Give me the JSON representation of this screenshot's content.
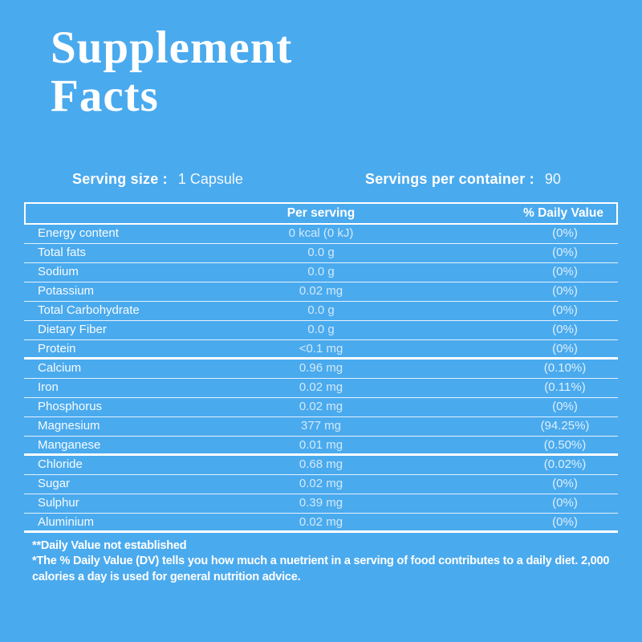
{
  "title": {
    "line1": "Supplement",
    "line2": "Facts"
  },
  "serving": {
    "size_label": "Serving size :",
    "size_value": "1 Capsule",
    "container_label": "Servings per container :",
    "container_value": "90"
  },
  "table": {
    "header_per_serving": "Per serving",
    "header_daily_value": "% Daily Value",
    "rows": [
      {
        "name": "Energy content",
        "amount": "0 kcal (0 kJ)",
        "dv": "(0%)",
        "thick_after": false
      },
      {
        "name": "Total fats",
        "amount": "0.0 g",
        "dv": "(0%)",
        "thick_after": false
      },
      {
        "name": "Sodium",
        "amount": "0.0 g",
        "dv": "(0%)",
        "thick_after": false
      },
      {
        "name": "Potassium",
        "amount": "0.02 mg",
        "dv": "(0%)",
        "thick_after": false
      },
      {
        "name": "Total Carbohydrate",
        "amount": "0.0 g",
        "dv": "(0%)",
        "thick_after": false
      },
      {
        "name": "Dietary Fiber",
        "amount": "0.0 g",
        "dv": "(0%)",
        "thick_after": false
      },
      {
        "name": "Protein",
        "amount": "<0.1 mg",
        "dv": "(0%)",
        "thick_after": true
      },
      {
        "name": "Calcium",
        "amount": "0.96 mg",
        "dv": "(0.10%)",
        "thick_after": false
      },
      {
        "name": "Iron",
        "amount": "0.02 mg",
        "dv": "(0.11%)",
        "thick_after": false
      },
      {
        "name": "Phosphorus",
        "amount": "0.02 mg",
        "dv": "(0%)",
        "thick_after": false
      },
      {
        "name": "Magnesium",
        "amount": "377 mg",
        "dv": "(94.25%)",
        "thick_after": false
      },
      {
        "name": "Manganese",
        "amount": "0.01 mg",
        "dv": "(0.50%)",
        "thick_after": true
      },
      {
        "name": "Chloride",
        "amount": "0.68 mg",
        "dv": "(0.02%)",
        "thick_after": false
      },
      {
        "name": "Sugar",
        "amount": "0.02 mg",
        "dv": "(0%)",
        "thick_after": false
      },
      {
        "name": "Sulphur",
        "amount": "0.39 mg",
        "dv": "(0%)",
        "thick_after": false
      },
      {
        "name": "Aluminium",
        "amount": "0.02 mg",
        "dv": "(0%)",
        "thick_after": true
      }
    ]
  },
  "footnotes": {
    "note1": "**Daily Value not established",
    "note2": "*The % Daily Value (DV) tells you how much a nuetrient in a serving of food contributes to a daily diet. 2,000 calories a day is used for general nutrition advice."
  },
  "colors": {
    "background": "#4AAAEE",
    "text": "#FFFFFF"
  }
}
